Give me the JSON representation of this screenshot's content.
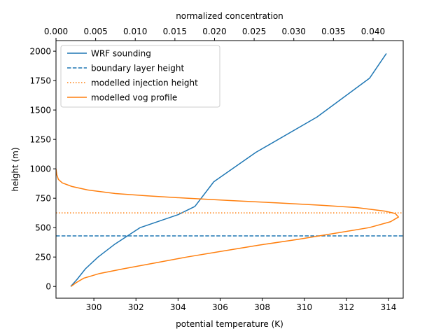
{
  "chart_data": {
    "type": "line",
    "xlabel": "potential temperature (K)",
    "ylabel": "height (m)",
    "x2label": "normalized concentration",
    "xlim": [
      298.2,
      314.7
    ],
    "ylim": [
      -100,
      2090
    ],
    "x2lim": [
      0.0,
      0.0438
    ],
    "x_ticks": [
      300,
      302,
      304,
      306,
      308,
      310,
      312,
      314
    ],
    "x_tick_labels": [
      "300",
      "302",
      "304",
      "306",
      "308",
      "310",
      "312",
      "314"
    ],
    "y_ticks": [
      0,
      250,
      500,
      750,
      1000,
      1250,
      1500,
      1750,
      2000
    ],
    "y_tick_labels": [
      "0",
      "250",
      "500",
      "750",
      "1000",
      "1250",
      "1500",
      "1750",
      "2000"
    ],
    "x2_ticks": [
      0.0,
      0.005,
      0.01,
      0.015,
      0.02,
      0.025,
      0.03,
      0.035,
      0.04
    ],
    "x2_tick_labels": [
      "0.000",
      "0.005",
      "0.010",
      "0.015",
      "0.020",
      "0.025",
      "0.030",
      "0.035",
      "0.040"
    ],
    "grid": false,
    "legend_position": "top-left",
    "series": [
      {
        "name": "WRF sounding",
        "axis": "bottom",
        "color": "#1f77b4",
        "dash": "solid",
        "points": [
          [
            298.9,
            0
          ],
          [
            299.2,
            60
          ],
          [
            299.6,
            150
          ],
          [
            300.2,
            250
          ],
          [
            301.0,
            360
          ],
          [
            302.2,
            500
          ],
          [
            304.0,
            610
          ],
          [
            304.8,
            680
          ],
          [
            305.7,
            890
          ],
          [
            307.7,
            1140
          ],
          [
            310.6,
            1440
          ],
          [
            313.1,
            1770
          ],
          [
            313.9,
            1980
          ]
        ]
      },
      {
        "name": "boundary layer height",
        "axis": "horizontal-line",
        "color": "#1f77b4",
        "dash": "dashed",
        "value": 430
      },
      {
        "name": "modelled injection height",
        "axis": "horizontal-line",
        "color": "#ff7f0e",
        "dash": "dotted",
        "value": 625
      },
      {
        "name": "modelled vog profile",
        "axis": "top",
        "color": "#ff7f0e",
        "dash": "solid",
        "points": [
          [
            0.0019,
            0
          ],
          [
            0.0025,
            30
          ],
          [
            0.0035,
            70
          ],
          [
            0.0055,
            110
          ],
          [
            0.0085,
            150
          ],
          [
            0.0125,
            200
          ],
          [
            0.0165,
            250
          ],
          [
            0.021,
            300
          ],
          [
            0.0255,
            350
          ],
          [
            0.0305,
            400
          ],
          [
            0.035,
            450
          ],
          [
            0.0395,
            500
          ],
          [
            0.0422,
            550
          ],
          [
            0.0432,
            590
          ],
          [
            0.0428,
            620
          ],
          [
            0.0415,
            640
          ],
          [
            0.038,
            670
          ],
          [
            0.0335,
            690
          ],
          [
            0.028,
            710
          ],
          [
            0.022,
            730
          ],
          [
            0.0165,
            750
          ],
          [
            0.0115,
            770
          ],
          [
            0.0075,
            790
          ],
          [
            0.004,
            820
          ],
          [
            0.002,
            850
          ],
          [
            0.0008,
            880
          ],
          [
            0.0003,
            910
          ],
          [
            0.0001,
            950
          ],
          [
            0.0,
            1000
          ]
        ]
      }
    ]
  }
}
